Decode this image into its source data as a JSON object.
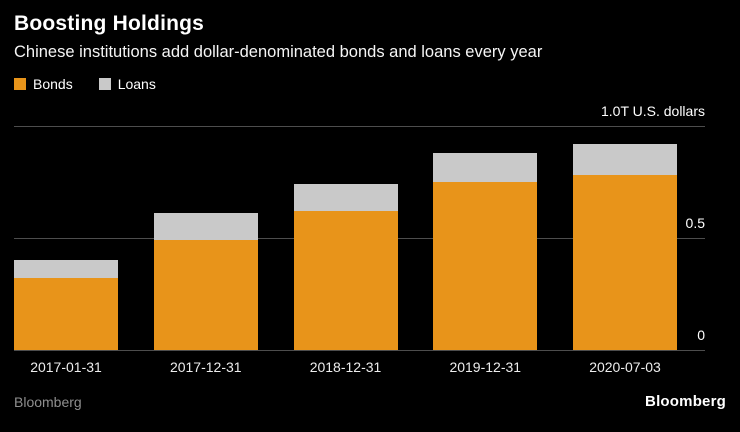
{
  "header": {
    "title": "Boosting Holdings",
    "subtitle": "Chinese institutions add dollar-denominated bonds and loans every year"
  },
  "legend": [
    {
      "label": "Bonds",
      "color": "#E8941A"
    },
    {
      "label": "Loans",
      "color": "#C9C9C9"
    }
  ],
  "axis": {
    "top_label": "1.0T U.S. dollars",
    "mid_label": "0.5",
    "zero_label": "0"
  },
  "footer": {
    "source": "Bloomberg",
    "logo": "Bloomberg"
  },
  "chart_data": {
    "type": "bar",
    "stacked": true,
    "title": "Boosting Holdings",
    "subtitle": "Chinese institutions add dollar-denominated bonds and loans every year",
    "categories": [
      "2017-01-31",
      "2017-12-31",
      "2018-12-31",
      "2019-12-31",
      "2020-07-03"
    ],
    "series": [
      {
        "name": "Bonds",
        "color": "#E8941A",
        "values": [
          0.32,
          0.49,
          0.62,
          0.75,
          0.78
        ]
      },
      {
        "name": "Loans",
        "color": "#C9C9C9",
        "values": [
          0.08,
          0.12,
          0.12,
          0.13,
          0.14
        ]
      }
    ],
    "ylabel": "T U.S. dollars",
    "ylim": [
      0,
      1.0
    ],
    "yticks": [
      0,
      0.5,
      1.0
    ],
    "grid": true,
    "legend_position": "top-left"
  }
}
